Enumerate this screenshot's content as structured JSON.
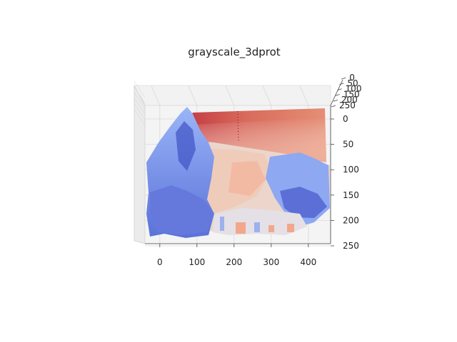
{
  "chart_data": {
    "type": "surface3d",
    "title": "grayscale_3dprot",
    "colormap": "coolwarm",
    "view": "3d surface viewed nearly face-on, z toward viewer",
    "grid": true,
    "x": {
      "label": "",
      "range": [
        -40,
        460
      ],
      "ticks": [
        0,
        100,
        200,
        300,
        400
      ]
    },
    "y": {
      "label": "",
      "range": [
        0,
        250
      ],
      "ticks": [
        0,
        50,
        100,
        150,
        200,
        250
      ],
      "inverted": true
    },
    "z": {
      "label": "",
      "range": [
        0,
        250
      ],
      "ticks": [
        0,
        50,
        100,
        150,
        200,
        250
      ]
    },
    "colors": {
      "high": "#b40426",
      "mid": "#dddddd",
      "low": "#3b4cc0"
    }
  }
}
